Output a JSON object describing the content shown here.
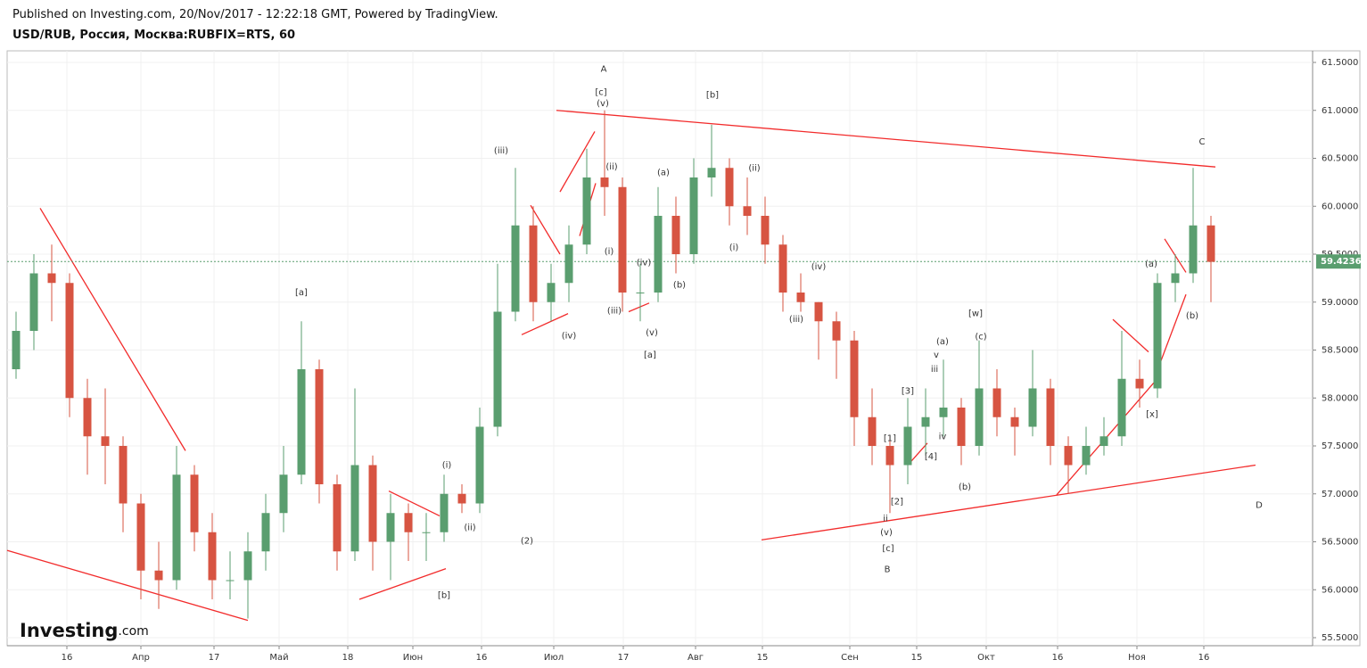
{
  "header": {
    "published": "Published on Investing.com, 20/Nov/2017 - 12:22:18 GMT, Powered by TradingView.",
    "symbol": "USD/RUB, Россия, Москва:RUBFIX=RTS, 60"
  },
  "logo": {
    "name": "Investing",
    "suffix": ".com"
  },
  "chart_data": {
    "type": "candlestick",
    "up_color": "#5a9e6f",
    "down_color": "#d75442",
    "line_color": "#f22b2b",
    "grid": true,
    "xlim": [
      0,
      73.2
    ],
    "xticks": [
      {
        "value": 3.35,
        "label": "16"
      },
      {
        "value": 7.5,
        "label": "Апр"
      },
      {
        "value": 11.6,
        "label": "17"
      },
      {
        "value": 15.25,
        "label": "Май"
      },
      {
        "value": 19.1,
        "label": "18"
      },
      {
        "value": 22.75,
        "label": "Июн"
      },
      {
        "value": 26.6,
        "label": "16"
      },
      {
        "value": 30.65,
        "label": "Июл"
      },
      {
        "value": 34.55,
        "label": "17"
      },
      {
        "value": 38.6,
        "label": "Авг"
      },
      {
        "value": 42.35,
        "label": "15"
      },
      {
        "value": 47.25,
        "label": "Сен"
      },
      {
        "value": 51,
        "label": "15"
      },
      {
        "value": 54.9,
        "label": "Окт"
      },
      {
        "value": 58.9,
        "label": "16"
      },
      {
        "value": 63.35,
        "label": "Ноя"
      },
      {
        "value": 67.1,
        "label": "16"
      }
    ],
    "ylim": [
      55.5,
      61.5
    ],
    "yticks": [
      {
        "value": 55.5,
        "label": "55.5000"
      },
      {
        "value": 56,
        "label": "56.0000"
      },
      {
        "value": 56.5,
        "label": "56.5000"
      },
      {
        "value": 57,
        "label": "57.0000"
      },
      {
        "value": 57.5,
        "label": "57.5000"
      },
      {
        "value": 58,
        "label": "58.0000"
      },
      {
        "value": 58.5,
        "label": "58.5000"
      },
      {
        "value": 59,
        "label": "59.0000"
      },
      {
        "value": 59.5,
        "label": "59.5000"
      },
      {
        "value": 60,
        "label": "60.0000"
      },
      {
        "value": 60.5,
        "label": "60.5000"
      },
      {
        "value": 61,
        "label": "61.0000"
      },
      {
        "value": 61.5,
        "label": "61.5000"
      }
    ],
    "last_price": 59.4236,
    "candles": [
      [
        58.3,
        58.9,
        58.2,
        58.7
      ],
      [
        58.7,
        59.5,
        58.5,
        59.3
      ],
      [
        59.3,
        59.6,
        58.8,
        59.2
      ],
      [
        59.2,
        59.3,
        57.8,
        58.0
      ],
      [
        58.0,
        58.2,
        57.2,
        57.6
      ],
      [
        57.6,
        58.1,
        57.1,
        57.5
      ],
      [
        57.5,
        57.6,
        56.6,
        56.9
      ],
      [
        56.9,
        57.0,
        55.9,
        56.2
      ],
      [
        56.2,
        56.5,
        55.8,
        56.1
      ],
      [
        56.1,
        57.5,
        56.0,
        57.2
      ],
      [
        57.2,
        57.3,
        56.4,
        56.6
      ],
      [
        56.6,
        56.8,
        55.9,
        56.1
      ],
      [
        56.1,
        56.4,
        55.9,
        56.1
      ],
      [
        56.1,
        56.6,
        55.7,
        56.4
      ],
      [
        56.4,
        57.0,
        56.2,
        56.8
      ],
      [
        56.8,
        57.5,
        56.6,
        57.2
      ],
      [
        57.2,
        58.8,
        57.1,
        58.3
      ],
      [
        58.3,
        58.4,
        56.9,
        57.1
      ],
      [
        57.1,
        57.2,
        56.2,
        56.4
      ],
      [
        56.4,
        58.1,
        56.3,
        57.3
      ],
      [
        57.3,
        57.4,
        56.2,
        56.5
      ],
      [
        56.5,
        57.0,
        56.1,
        56.8
      ],
      [
        56.8,
        56.9,
        56.3,
        56.6
      ],
      [
        56.6,
        56.8,
        56.3,
        56.6
      ],
      [
        56.6,
        57.2,
        56.5,
        57.0
      ],
      [
        57.0,
        57.1,
        56.8,
        56.9
      ],
      [
        56.9,
        57.9,
        56.8,
        57.7
      ],
      [
        57.7,
        59.4,
        57.6,
        58.9
      ],
      [
        58.9,
        60.4,
        58.8,
        59.8
      ],
      [
        59.8,
        60.0,
        58.8,
        59.0
      ],
      [
        59.0,
        59.4,
        58.8,
        59.2
      ],
      [
        59.2,
        59.8,
        59.0,
        59.6
      ],
      [
        59.6,
        60.6,
        59.5,
        60.3
      ],
      [
        60.3,
        61.0,
        59.9,
        60.2
      ],
      [
        60.2,
        60.3,
        58.9,
        59.1
      ],
      [
        59.1,
        59.4,
        58.8,
        59.1
      ],
      [
        59.1,
        60.2,
        59.0,
        59.9
      ],
      [
        59.9,
        60.1,
        59.3,
        59.5
      ],
      [
        59.5,
        60.5,
        59.4,
        60.3
      ],
      [
        60.3,
        60.85,
        60.1,
        60.4
      ],
      [
        60.4,
        60.5,
        59.8,
        60.0
      ],
      [
        60.0,
        60.3,
        59.7,
        59.9
      ],
      [
        59.9,
        60.1,
        59.4,
        59.6
      ],
      [
        59.6,
        59.7,
        58.9,
        59.1
      ],
      [
        59.1,
        59.3,
        58.9,
        59.0
      ],
      [
        59.0,
        59.0,
        58.4,
        58.8
      ],
      [
        58.8,
        58.9,
        58.2,
        58.6
      ],
      [
        58.6,
        58.7,
        57.5,
        57.8
      ],
      [
        57.8,
        58.1,
        57.3,
        57.5
      ],
      [
        57.5,
        57.6,
        56.8,
        57.3
      ],
      [
        57.3,
        58.0,
        57.1,
        57.7
      ],
      [
        57.7,
        58.1,
        57.4,
        57.8
      ],
      [
        57.8,
        58.4,
        57.6,
        57.9
      ],
      [
        57.9,
        58.0,
        57.3,
        57.5
      ],
      [
        57.5,
        58.6,
        57.4,
        58.1
      ],
      [
        58.1,
        58.3,
        57.6,
        57.8
      ],
      [
        57.8,
        57.9,
        57.4,
        57.7
      ],
      [
        57.7,
        58.5,
        57.6,
        58.1
      ],
      [
        58.1,
        58.2,
        57.3,
        57.5
      ],
      [
        57.5,
        57.6,
        57.0,
        57.3
      ],
      [
        57.3,
        57.7,
        57.2,
        57.5
      ],
      [
        57.5,
        57.8,
        57.4,
        57.6
      ],
      [
        57.6,
        58.7,
        57.5,
        58.2
      ],
      [
        58.2,
        58.4,
        57.9,
        58.1
      ],
      [
        58.1,
        59.3,
        58.0,
        59.2
      ],
      [
        59.2,
        59.5,
        59.0,
        59.3
      ],
      [
        59.3,
        60.4,
        59.2,
        59.8
      ],
      [
        59.8,
        59.9,
        59.0,
        59.42
      ]
    ],
    "annotations": [
      {
        "text": "A",
        "x": 33.45,
        "y": 61.43
      },
      {
        "text": "[c]",
        "x": 33.3,
        "y": 61.19
      },
      {
        "text": "(v)",
        "x": 33.4,
        "y": 61.07
      },
      {
        "text": "[b]",
        "x": 39.55,
        "y": 61.16
      },
      {
        "text": "C",
        "x": 67.0,
        "y": 60.67
      },
      {
        "text": "(iii)",
        "x": 27.7,
        "y": 60.58
      },
      {
        "text": "(ii)",
        "x": 33.9,
        "y": 60.41
      },
      {
        "text": "(a)",
        "x": 36.8,
        "y": 60.35
      },
      {
        "text": "(ii)",
        "x": 41.9,
        "y": 60.4
      },
      {
        "text": "(i)",
        "x": 33.75,
        "y": 59.53
      },
      {
        "text": "(i)",
        "x": 40.75,
        "y": 59.57
      },
      {
        "text": "(iv)",
        "x": 35.7,
        "y": 59.41
      },
      {
        "text": "(iv)",
        "x": 45.5,
        "y": 59.37
      },
      {
        "text": "(a)",
        "x": 64.15,
        "y": 59.4
      },
      {
        "text": "[a]",
        "x": 16.5,
        "y": 59.1
      },
      {
        "text": "(b)",
        "x": 37.7,
        "y": 59.18
      },
      {
        "text": "(iii)",
        "x": 34.05,
        "y": 58.91
      },
      {
        "text": "(b)",
        "x": 66.45,
        "y": 58.86
      },
      {
        "text": "(iii)",
        "x": 44.25,
        "y": 58.82
      },
      {
        "text": "[w]",
        "x": 54.3,
        "y": 58.88
      },
      {
        "text": "(v)",
        "x": 36.15,
        "y": 58.68
      },
      {
        "text": "(iv)",
        "x": 31.5,
        "y": 58.65
      },
      {
        "text": "(a)",
        "x": 52.45,
        "y": 58.59
      },
      {
        "text": "(c)",
        "x": 54.6,
        "y": 58.64
      },
      {
        "text": "v",
        "x": 52.1,
        "y": 58.45
      },
      {
        "text": "[a]",
        "x": 36.05,
        "y": 58.45
      },
      {
        "text": "iii",
        "x": 52.0,
        "y": 58.3
      },
      {
        "text": "[3]",
        "x": 50.5,
        "y": 58.07
      },
      {
        "text": "[x]",
        "x": 64.2,
        "y": 57.83
      },
      {
        "text": "iv",
        "x": 52.45,
        "y": 57.6
      },
      {
        "text": "[1]",
        "x": 49.5,
        "y": 57.58
      },
      {
        "text": "[4]",
        "x": 51.8,
        "y": 57.39
      },
      {
        "text": "(i)",
        "x": 24.65,
        "y": 57.3
      },
      {
        "text": "(b)",
        "x": 53.7,
        "y": 57.07
      },
      {
        "text": "[2]",
        "x": 49.9,
        "y": 56.92
      },
      {
        "text": "D",
        "x": 70.2,
        "y": 56.88
      },
      {
        "text": "ii",
        "x": 49.25,
        "y": 56.74
      },
      {
        "text": "(ii)",
        "x": 25.95,
        "y": 56.65
      },
      {
        "text": "(v)",
        "x": 49.3,
        "y": 56.6
      },
      {
        "text": "(2)",
        "x": 29.15,
        "y": 56.51
      },
      {
        "text": "[c]",
        "x": 49.4,
        "y": 56.43
      },
      {
        "text": "B",
        "x": 49.35,
        "y": 56.21
      },
      {
        "text": "[b]",
        "x": 24.5,
        "y": 55.94
      }
    ],
    "trendlines": [
      {
        "x1": 0,
        "y1": 56.41,
        "x2": 13.5,
        "y2": 55.68
      },
      {
        "x1": 1.85,
        "y1": 59.98,
        "x2": 10,
        "y2": 57.45
      },
      {
        "x1": 19.75,
        "y1": 55.9,
        "x2": 24.6,
        "y2": 56.22
      },
      {
        "x1": 21.4,
        "y1": 57.03,
        "x2": 24.25,
        "y2": 56.77
      },
      {
        "x1": 28.85,
        "y1": 58.66,
        "x2": 31.45,
        "y2": 58.88
      },
      {
        "x1": 29.35,
        "y1": 60.01,
        "x2": 31,
        "y2": 59.5
      },
      {
        "x1": 31,
        "y1": 60.15,
        "x2": 32.95,
        "y2": 60.78
      },
      {
        "x1": 32.1,
        "y1": 59.69,
        "x2": 33,
        "y2": 60.24
      },
      {
        "x1": 30.8,
        "y1": 61.0,
        "x2": 67.75,
        "y2": 60.41
      },
      {
        "x1": 34.85,
        "y1": 58.9,
        "x2": 36,
        "y2": 58.99
      },
      {
        "x1": 42.3,
        "y1": 56.52,
        "x2": 70,
        "y2": 57.3
      },
      {
        "x1": 58.85,
        "y1": 56.99,
        "x2": 64.35,
        "y2": 58.17
      },
      {
        "x1": 62,
        "y1": 58.82,
        "x2": 64,
        "y2": 58.48
      },
      {
        "x1": 64.5,
        "y1": 58.29,
        "x2": 66.1,
        "y2": 59.08
      },
      {
        "x1": 64.9,
        "y1": 59.66,
        "x2": 66.1,
        "y2": 59.31
      },
      {
        "x1": 50.6,
        "y1": 57.32,
        "x2": 51.6,
        "y2": 57.53
      }
    ]
  }
}
